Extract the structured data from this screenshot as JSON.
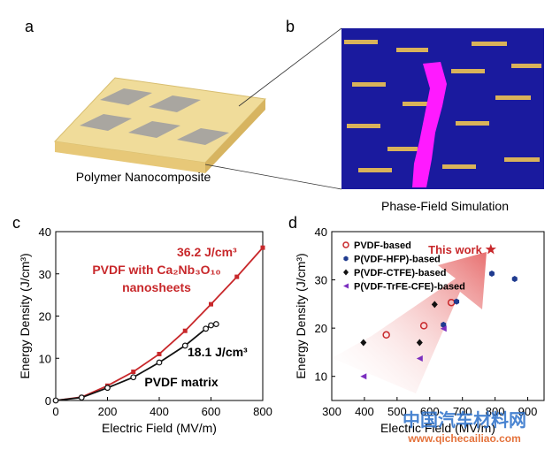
{
  "panel_labels": [
    "a",
    "b",
    "c",
    "d"
  ],
  "captions": [
    "Polymer Nanocomposite",
    "Phase-Field Simulation"
  ],
  "watermark": [
    "中国汽车材料网",
    "www.qichecailiao.com"
  ],
  "chart_data": [
    {
      "type": "line",
      "xlabel": "Electric Field (MV/m)",
      "ylabel": "Energy Density (J/cm³)",
      "xlim": [
        0,
        800
      ],
      "xticks": [
        0,
        200,
        400,
        600,
        800
      ],
      "ylim": [
        0,
        40
      ],
      "yticks": [
        0,
        10,
        20,
        30,
        40
      ],
      "series": [
        {
          "name": "PVDF with Ca₂Nb₃O₁₀ nanosheets",
          "color": "#c8282b",
          "marker": "square",
          "x": [
            0,
            100,
            200,
            300,
            400,
            500,
            600,
            700,
            800
          ],
          "values": [
            0,
            0.8,
            3.5,
            6.8,
            11,
            16.5,
            22.8,
            29.3,
            36.2
          ]
        },
        {
          "name": "PVDF matrix",
          "color": "#111111",
          "marker": "circle",
          "x": [
            0,
            100,
            200,
            300,
            400,
            500,
            580,
            600,
            620
          ],
          "values": [
            0,
            0.7,
            3,
            5.5,
            9,
            13,
            17,
            17.8,
            18.1
          ]
        }
      ],
      "annotations": [
        "36.2 J/cm³",
        "18.1 J/cm³"
      ]
    },
    {
      "type": "scatter",
      "xlabel": "Electric Field (MV/m)",
      "ylabel": "Energy Density (J/cm³)",
      "xlim": [
        300,
        950
      ],
      "xticks": [
        300,
        400,
        500,
        600,
        700,
        800,
        900
      ],
      "ylim": [
        5,
        40
      ],
      "yticks": [
        10,
        20,
        30,
        40
      ],
      "series": [
        {
          "name": "PVDF-based",
          "color": "#c8282b",
          "marker": "open-circle",
          "x": [
            467,
            582,
            666
          ],
          "values": [
            18.6,
            20.5,
            25.3
          ]
        },
        {
          "name": "P(VDF-HFP)-based",
          "color": "#1f3b8f",
          "marker": "hexagon",
          "x": [
            642,
            682,
            790,
            860
          ],
          "values": [
            20.7,
            25.5,
            31.3,
            30.2
          ]
        },
        {
          "name": "P(VDF-CTFE)-based",
          "color": "#111111",
          "marker": "diamond",
          "x": [
            397,
            569,
            615
          ],
          "values": [
            17,
            17,
            24.9
          ]
        },
        {
          "name": "P(VDF-TrFE-CFE)-based",
          "color": "#7b2fbf",
          "marker": "triangle",
          "x": [
            397,
            569,
            642
          ],
          "values": [
            10,
            13.7,
            19.9
          ]
        }
      ],
      "highlight": {
        "label": "This work",
        "x": 787,
        "y": 36.3,
        "color": "#c8282b"
      }
    }
  ]
}
